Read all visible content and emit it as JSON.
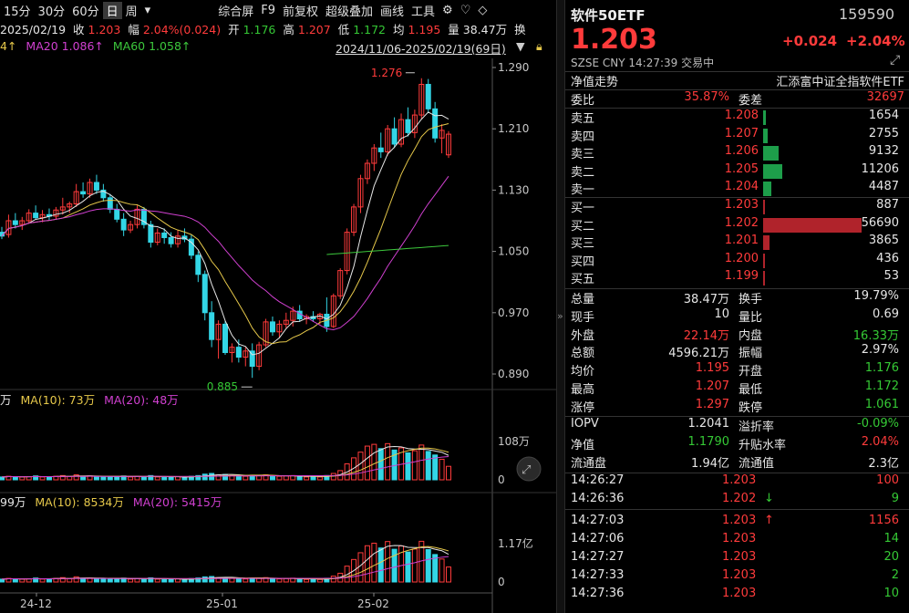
{
  "toolbar": {
    "items": [
      "15分",
      "30分",
      "60分",
      "日",
      "周",
      "▾",
      "综合屏",
      "F9",
      "前复权",
      "超级叠加",
      "画线",
      "工具",
      "⚙",
      "♡",
      "◇"
    ],
    "active": "日"
  },
  "bar_info": {
    "date": "2025/02/19",
    "close_label": "收",
    "close": "1.203",
    "change_label": "幅",
    "change": "2.04%(0.024)",
    "open_label": "开",
    "open": "1.176",
    "high_label": "高",
    "high": "1.207",
    "low_label": "低",
    "low": "1.172",
    "avg_label": "均",
    "avg": "1.195",
    "vol_label": "量",
    "vol": "38.47万",
    "swap_label": "换"
  },
  "ma_legend": {
    "ma5_tail": "4↑",
    "ma20": "MA20 1.086↑",
    "ma60": "MA60 1.058↑",
    "range": "2024/11/06-2025/02/19(69日)"
  },
  "price_axis": [
    "1.290",
    "1.210",
    "1.130",
    "1.050",
    "0.970",
    "0.890"
  ],
  "annotations": {
    "high": "1.276",
    "low": "0.885"
  },
  "vol_legend": {
    "unit_tail": "万",
    "ma10": "MA(10): 73万",
    "ma20": "MA(20): 48万"
  },
  "vol_axis": [
    "108万",
    "0"
  ],
  "amt_legend": {
    "unit_tail": "99万",
    "ma10": "MA(10): 8534万",
    "ma20": "MA(20): 5415万"
  },
  "amt_axis": [
    "1.17亿",
    "0"
  ],
  "date_axis": [
    "24-12",
    "25-01",
    "25-02"
  ],
  "colors": {
    "up": "#ff3b3b",
    "down": "#35c935",
    "cyan": "#33d6e6",
    "ma5": "#e6e6e6",
    "ma10": "#e6c84a",
    "ma20": "#d040d0",
    "ma60": "#3cc83c"
  },
  "panel": {
    "name": "软件50ETF",
    "code": "159590",
    "price": "1.203",
    "change": "+0.024",
    "change_pct": "+2.04%",
    "market": "SZSE",
    "currency": "CNY",
    "time": "14:27:39",
    "status": "交易中",
    "nav_trend": "净值走势",
    "fund_name": "汇添富中证全指软件ETF",
    "weibi_label": "委比",
    "weibi": "35.87%",
    "weicha_label": "委差",
    "weicha": "32697",
    "asks": [
      {
        "label": "卖五",
        "price": "1.208",
        "vol": "1654"
      },
      {
        "label": "卖四",
        "price": "1.207",
        "vol": "2755"
      },
      {
        "label": "卖三",
        "price": "1.206",
        "vol": "9132"
      },
      {
        "label": "卖二",
        "price": "1.205",
        "vol": "11206"
      },
      {
        "label": "卖一",
        "price": "1.204",
        "vol": "4487"
      }
    ],
    "bids": [
      {
        "label": "买一",
        "price": "1.203",
        "vol": "887"
      },
      {
        "label": "买二",
        "price": "1.202",
        "vol": "56690"
      },
      {
        "label": "买三",
        "price": "1.201",
        "vol": "3865"
      },
      {
        "label": "买四",
        "price": "1.200",
        "vol": "436"
      },
      {
        "label": "买五",
        "price": "1.199",
        "vol": "53"
      }
    ],
    "stats": [
      {
        "l1": "总量",
        "v1": "38.47万",
        "c1": "wht",
        "l2": "换手",
        "v2": "19.79%",
        "c2": "wht"
      },
      {
        "l1": "现手",
        "v1": "10",
        "c1": "wht",
        "l2": "量比",
        "v2": "0.69",
        "c2": "wht"
      },
      {
        "l1": "外盘",
        "v1": "22.14万",
        "c1": "up",
        "l2": "内盘",
        "v2": "16.33万",
        "c2": "down"
      },
      {
        "l1": "总额",
        "v1": "4596.21万",
        "c1": "wht",
        "l2": "振幅",
        "v2": "2.97%",
        "c2": "wht"
      },
      {
        "l1": "均价",
        "v1": "1.195",
        "c1": "up",
        "l2": "开盘",
        "v2": "1.176",
        "c2": "down"
      },
      {
        "l1": "最高",
        "v1": "1.207",
        "c1": "up",
        "l2": "最低",
        "v2": "1.172",
        "c2": "down"
      },
      {
        "l1": "涨停",
        "v1": "1.297",
        "c1": "up",
        "l2": "跌停",
        "v2": "1.061",
        "c2": "down"
      }
    ],
    "iopv": [
      {
        "l1": "IOPV",
        "v1": "1.2041",
        "c1": "wht",
        "l2": "溢折率",
        "v2": "-0.09%",
        "c2": "down"
      },
      {
        "l1": "净值",
        "v1": "1.1790",
        "c1": "down",
        "l2": "升贴水率",
        "v2": "2.04%",
        "c2": "up"
      },
      {
        "l1": "流通盘",
        "v1": "1.94亿",
        "c1": "wht",
        "l2": "流通值",
        "v2": "2.3亿",
        "c2": "wht"
      }
    ],
    "ticks": [
      {
        "time": "14:26:27",
        "price": "1.203",
        "arrow": "",
        "vol": "100",
        "vc": "up"
      },
      {
        "time": "14:26:36",
        "price": "1.202",
        "arrow": "↓",
        "vol": "9",
        "vc": "down"
      },
      {
        "time": "14:27:03",
        "price": "1.203",
        "arrow": "↑",
        "vol": "1156",
        "vc": "up"
      },
      {
        "time": "14:27:06",
        "price": "1.203",
        "arrow": "",
        "vol": "14",
        "vc": "down"
      },
      {
        "time": "14:27:27",
        "price": "1.203",
        "arrow": "",
        "vol": "20",
        "vc": "down"
      },
      {
        "time": "14:27:33",
        "price": "1.203",
        "arrow": "",
        "vol": "2",
        "vc": "down"
      },
      {
        "time": "14:27:36",
        "price": "1.203",
        "arrow": "",
        "vol": "10",
        "vc": "down"
      }
    ]
  }
}
